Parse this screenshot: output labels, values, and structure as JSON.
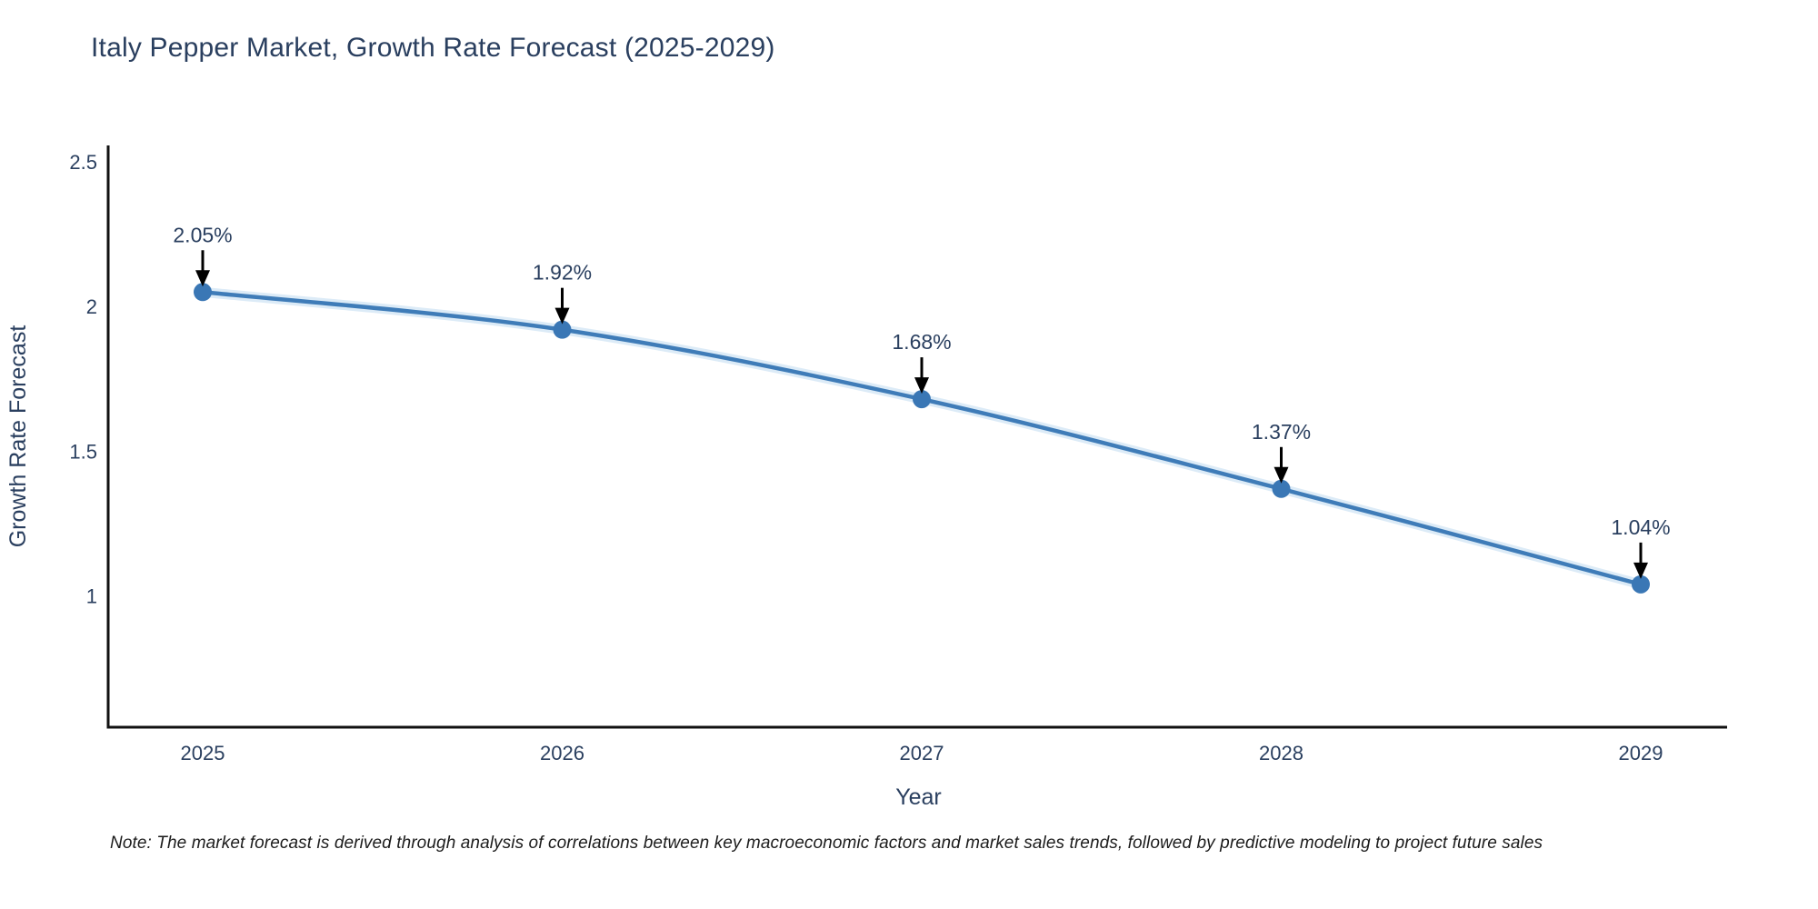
{
  "page": {
    "background": "#ffffff"
  },
  "header": {
    "title": "Italy Pepper Market, Growth Rate Forecast (2025-2029)"
  },
  "chart_data": {
    "type": "line",
    "title": "Italy Pepper Market, Growth Rate Forecast (2025-2029)",
    "xlabel": "Year",
    "ylabel": "Growth Rate Forecast",
    "x": [
      2025,
      2026,
      2027,
      2028,
      2029
    ],
    "y": [
      2.05,
      1.92,
      1.68,
      1.37,
      1.04
    ],
    "point_labels": [
      "2.05%",
      "1.92%",
      "1.68%",
      "1.37%",
      "1.04%"
    ],
    "xtick_labels": [
      "2025",
      "2026",
      "2027",
      "2028",
      "2029"
    ],
    "ytick_values": [
      2.5,
      2.0,
      1.5,
      1.0
    ],
    "ytick_labels": [
      "2.5",
      "2",
      "1.5",
      "1"
    ],
    "ylim": [
      0.54,
      2.56
    ],
    "grid": false,
    "legend_position": "none",
    "line_shape": "spline",
    "colors": {
      "line": "#3f7cb8",
      "line_halo": "#dcebf7",
      "marker": "#3a77b5",
      "axis": "#111111",
      "tick_text": "#2a3f5f",
      "annotation_text": "#2a3f5f",
      "annotation_arrow": "#000000"
    }
  },
  "note": {
    "text": "Note: The market forecast is derived through analysis of correlations between key macroeconomic factors and market sales trends, followed by predictive modeling to project future sales"
  }
}
